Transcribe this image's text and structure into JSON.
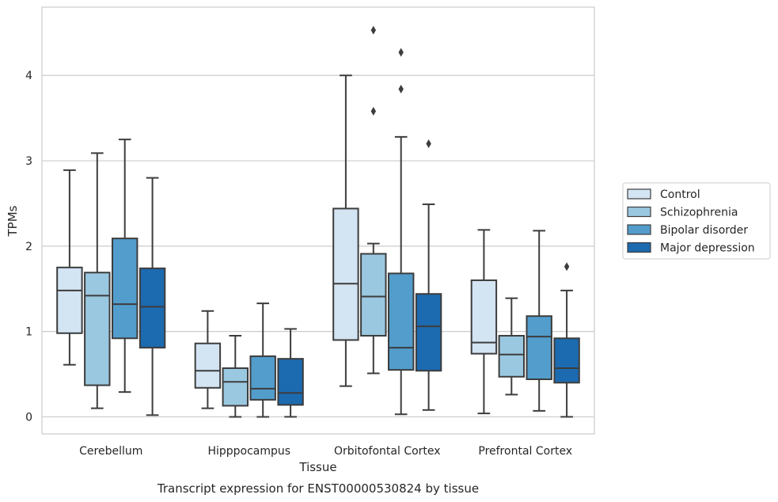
{
  "chart_data": {
    "type": "box",
    "title": "",
    "caption": "Transcript expression for ENST00000530824 by tissue",
    "xlabel": "Tissue",
    "ylabel": "TPMs",
    "ylim": [
      -0.2,
      4.8
    ],
    "yticks": [
      0,
      1,
      2,
      3,
      4
    ],
    "grid": "horizontal",
    "legend_position": "right",
    "categories": [
      "Cerebellum",
      "Hipppocampus",
      "Orbitofontal Cortex",
      "Prefrontal Cortex"
    ],
    "series": [
      {
        "name": "Control",
        "color": "#d3e4f3",
        "boxes": [
          {
            "whislo": 0.61,
            "q1": 0.98,
            "med": 1.48,
            "q3": 1.75,
            "whishi": 2.89,
            "fliers": []
          },
          {
            "whislo": 0.1,
            "q1": 0.34,
            "med": 0.54,
            "q3": 0.86,
            "whishi": 1.24,
            "fliers": []
          },
          {
            "whislo": 0.36,
            "q1": 0.9,
            "med": 1.56,
            "q3": 2.44,
            "whishi": 4.0,
            "fliers": []
          },
          {
            "whislo": 0.04,
            "q1": 0.74,
            "med": 0.87,
            "q3": 1.6,
            "whishi": 2.19,
            "fliers": []
          }
        ]
      },
      {
        "name": "Schizophrenia",
        "color": "#9ac8e0",
        "boxes": [
          {
            "whislo": 0.1,
            "q1": 0.37,
            "med": 1.42,
            "q3": 1.69,
            "whishi": 3.09,
            "fliers": []
          },
          {
            "whislo": 0.0,
            "q1": 0.13,
            "med": 0.41,
            "q3": 0.57,
            "whishi": 0.95,
            "fliers": []
          },
          {
            "whislo": 0.51,
            "q1": 0.95,
            "med": 1.41,
            "q3": 1.91,
            "whishi": 2.03,
            "fliers": [
              3.58,
              4.53
            ]
          },
          {
            "whislo": 0.26,
            "q1": 0.47,
            "med": 0.73,
            "q3": 0.95,
            "whishi": 1.39,
            "fliers": []
          }
        ]
      },
      {
        "name": "Bipolar disorder",
        "color": "#529dcc",
        "boxes": [
          {
            "whislo": 0.29,
            "q1": 0.92,
            "med": 1.32,
            "q3": 2.09,
            "whishi": 3.25,
            "fliers": []
          },
          {
            "whislo": 0.0,
            "q1": 0.2,
            "med": 0.33,
            "q3": 0.71,
            "whishi": 1.33,
            "fliers": []
          },
          {
            "whislo": 0.03,
            "q1": 0.55,
            "med": 0.81,
            "q3": 1.68,
            "whishi": 3.28,
            "fliers": [
              3.84,
              4.27
            ]
          },
          {
            "whislo": 0.07,
            "q1": 0.44,
            "med": 0.94,
            "q3": 1.18,
            "whishi": 2.18,
            "fliers": []
          }
        ]
      },
      {
        "name": "Major depression",
        "color": "#1c6aaf",
        "boxes": [
          {
            "whislo": 0.02,
            "q1": 0.81,
            "med": 1.29,
            "q3": 1.74,
            "whishi": 2.8,
            "fliers": []
          },
          {
            "whislo": 0.0,
            "q1": 0.14,
            "med": 0.28,
            "q3": 0.68,
            "whishi": 1.03,
            "fliers": []
          },
          {
            "whislo": 0.08,
            "q1": 0.54,
            "med": 1.06,
            "q3": 1.44,
            "whishi": 2.49,
            "fliers": [
              3.2
            ]
          },
          {
            "whislo": 0.0,
            "q1": 0.4,
            "med": 0.57,
            "q3": 0.92,
            "whishi": 1.48,
            "fliers": [
              1.76
            ]
          }
        ]
      }
    ]
  }
}
